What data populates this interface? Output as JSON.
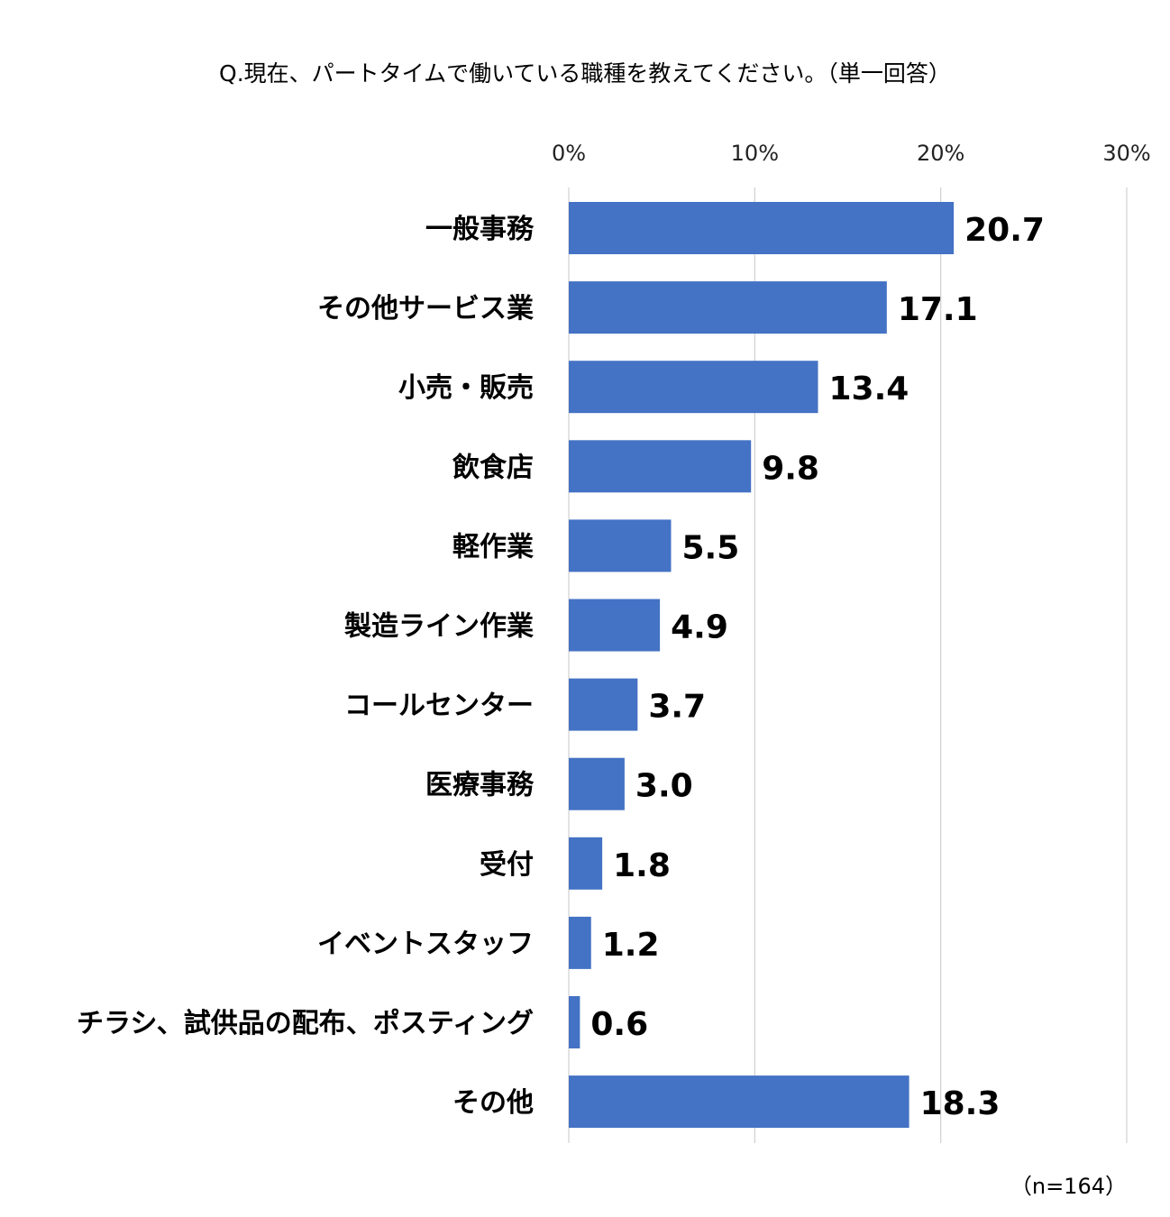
{
  "chart_data": {
    "type": "bar",
    "orientation": "horizontal",
    "title": "Q.現在、パートタイムで働いている職種を教えてください。（単一回答）",
    "categories": [
      "一般事務",
      "その他サービス業",
      "小売・販売",
      "飲食店",
      "軽作業",
      "製造ライン作業",
      "コールセンター",
      "医療事務",
      "受付",
      "イベントスタッフ",
      "チラシ、試供品の配布、ポスティング",
      "その他"
    ],
    "values": [
      20.7,
      17.1,
      13.4,
      9.8,
      5.5,
      4.9,
      3.7,
      3.0,
      1.8,
      1.2,
      0.6,
      18.3
    ],
    "value_labels": [
      "20.7",
      "17.1",
      "13.4",
      "9.8",
      "5.5",
      "4.9",
      "3.7",
      "3.0",
      "1.8",
      "1.2",
      "0.6",
      "18.3"
    ],
    "xlim": [
      0,
      30
    ],
    "ticks": [
      0,
      10,
      20,
      30
    ],
    "tick_labels": [
      "0%",
      "10%",
      "20%",
      "30%"
    ],
    "x_axis_position": "top",
    "grid": true,
    "bar_color": "#4472c4",
    "note": "（n=164）"
  }
}
